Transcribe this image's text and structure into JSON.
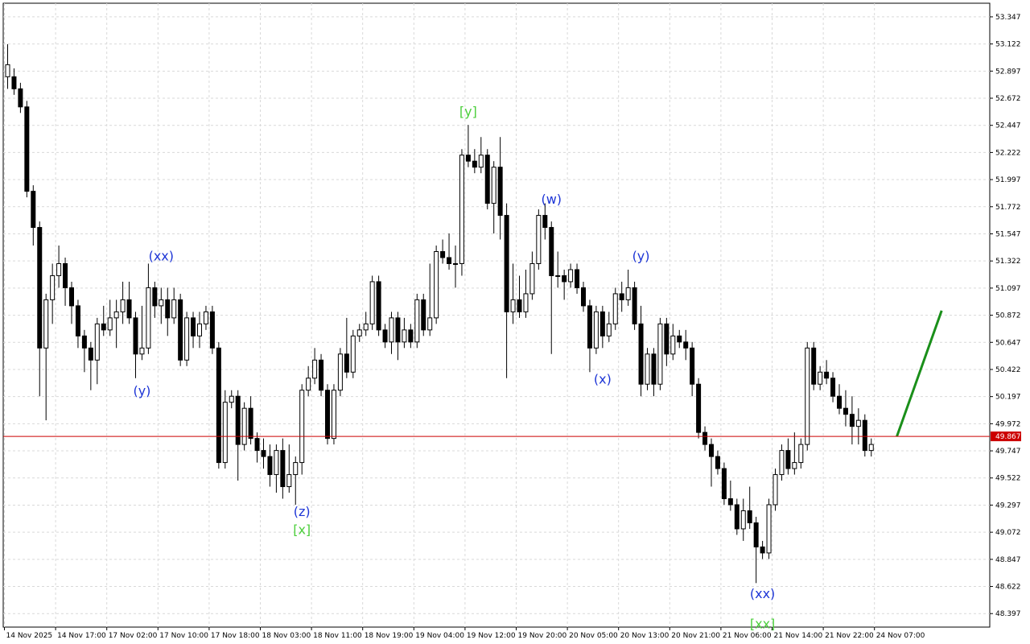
{
  "chart_data": {
    "type": "candlestick",
    "y_range": [
      48.285,
      53.46
    ],
    "y_ticks": [
      "53.347",
      "53.122",
      "52.897",
      "52.672",
      "52.447",
      "52.222",
      "51.997",
      "51.772",
      "51.547",
      "51.322",
      "51.097",
      "50.872",
      "50.647",
      "50.422",
      "50.197",
      "49.972",
      "49.747",
      "49.522",
      "49.297",
      "49.072",
      "48.847",
      "48.622",
      "48.397"
    ],
    "x_ticks": [
      {
        "label": "14 Nov 2025",
        "index": 0
      },
      {
        "label": "14 Nov 17:00",
        "index": 8
      },
      {
        "label": "17 Nov 02:00",
        "index": 16
      },
      {
        "label": "17 Nov 10:00",
        "index": 24
      },
      {
        "label": "17 Nov 18:00",
        "index": 32
      },
      {
        "label": "18 Nov 03:00",
        "index": 40
      },
      {
        "label": "18 Nov 11:00",
        "index": 48
      },
      {
        "label": "18 Nov 19:00",
        "index": 56
      },
      {
        "label": "19 Nov 04:00",
        "index": 64
      },
      {
        "label": "19 Nov 12:00",
        "index": 72
      },
      {
        "label": "19 Nov 20:00",
        "index": 80
      },
      {
        "label": "20 Nov 05:00",
        "index": 88
      },
      {
        "label": "20 Nov 13:00",
        "index": 96
      },
      {
        "label": "20 Nov 21:00",
        "index": 104
      },
      {
        "label": "21 Nov 06:00",
        "index": 112
      },
      {
        "label": "21 Nov 14:00",
        "index": 120
      },
      {
        "label": "21 Nov 22:00",
        "index": 128
      },
      {
        "label": "24 Nov 07:00",
        "index": 136
      }
    ],
    "current_price": {
      "value": 49.867,
      "label": "49.867",
      "color": "#cc0000"
    },
    "candles": [
      [
        52.85,
        52.95,
        52.75,
        53.12
      ],
      [
        52.85,
        52.75,
        52.7,
        52.92
      ],
      [
        52.75,
        52.6,
        52.55,
        52.8
      ],
      [
        52.6,
        51.9,
        51.85,
        52.65
      ],
      [
        51.9,
        51.6,
        51.45,
        51.95
      ],
      [
        51.6,
        50.6,
        50.2,
        51.65
      ],
      [
        50.6,
        51.0,
        50.0,
        51.05
      ],
      [
        51.0,
        51.2,
        50.8,
        51.3
      ],
      [
        51.2,
        51.3,
        51.1,
        51.45
      ],
      [
        51.3,
        51.1,
        50.95,
        51.35
      ],
      [
        51.1,
        50.95,
        50.8,
        51.15
      ],
      [
        50.95,
        50.7,
        50.6,
        51.0
      ],
      [
        50.7,
        50.6,
        50.4,
        50.75
      ],
      [
        50.6,
        50.5,
        50.25,
        50.65
      ],
      [
        50.5,
        50.8,
        50.3,
        50.85
      ],
      [
        50.8,
        50.75,
        50.7,
        50.95
      ],
      [
        50.75,
        50.85,
        50.7,
        51.0
      ],
      [
        50.85,
        50.9,
        50.6,
        51.0
      ],
      [
        50.9,
        51.0,
        50.8,
        51.15
      ],
      [
        51.0,
        50.85,
        50.8,
        51.15
      ],
      [
        50.85,
        50.55,
        50.35,
        50.9
      ],
      [
        50.55,
        50.6,
        50.5,
        50.95
      ],
      [
        50.6,
        51.1,
        50.55,
        51.3
      ],
      [
        51.1,
        50.95,
        50.85,
        51.15
      ],
      [
        50.95,
        51.0,
        50.8,
        51.1
      ],
      [
        51.0,
        50.85,
        50.7,
        51.1
      ],
      [
        50.85,
        51.0,
        50.8,
        51.1
      ],
      [
        51.0,
        50.5,
        50.45,
        51.05
      ],
      [
        50.5,
        50.85,
        50.45,
        50.9
      ],
      [
        50.85,
        50.7,
        50.6,
        50.9
      ],
      [
        50.7,
        50.8,
        50.6,
        50.9
      ],
      [
        50.8,
        50.9,
        50.75,
        50.95
      ],
      [
        50.9,
        50.6,
        50.55,
        50.95
      ],
      [
        50.6,
        49.65,
        49.6,
        50.65
      ],
      [
        49.65,
        50.15,
        49.6,
        50.25
      ],
      [
        50.15,
        50.2,
        50.1,
        50.25
      ],
      [
        50.2,
        49.8,
        49.5,
        50.25
      ],
      [
        49.8,
        50.1,
        49.75,
        50.15
      ],
      [
        50.1,
        49.85,
        49.8,
        50.2
      ],
      [
        49.85,
        49.75,
        49.65,
        49.9
      ],
      [
        49.75,
        49.7,
        49.6,
        49.85
      ],
      [
        49.7,
        49.55,
        49.45,
        49.8
      ],
      [
        49.55,
        49.75,
        49.4,
        49.8
      ],
      [
        49.75,
        49.45,
        49.35,
        49.85
      ],
      [
        49.45,
        49.55,
        49.4,
        49.8
      ],
      [
        49.55,
        49.65,
        49.3,
        49.7
      ],
      [
        49.65,
        50.25,
        49.55,
        50.3
      ],
      [
        50.25,
        50.35,
        50.2,
        50.45
      ],
      [
        50.35,
        50.5,
        50.3,
        50.6
      ],
      [
        50.5,
        50.25,
        50.2,
        50.55
      ],
      [
        50.25,
        49.85,
        49.8,
        50.3
      ],
      [
        49.85,
        50.25,
        49.8,
        50.3
      ],
      [
        50.25,
        50.55,
        50.2,
        50.6
      ],
      [
        50.55,
        50.4,
        50.35,
        50.85
      ],
      [
        50.4,
        50.7,
        50.35,
        50.75
      ],
      [
        50.7,
        50.75,
        50.65,
        50.8
      ],
      [
        50.75,
        50.8,
        50.7,
        50.9
      ],
      [
        50.8,
        51.15,
        50.75,
        51.2
      ],
      [
        51.15,
        50.75,
        50.7,
        51.2
      ],
      [
        50.75,
        50.65,
        50.6,
        50.8
      ],
      [
        50.65,
        50.85,
        50.55,
        50.9
      ],
      [
        50.85,
        50.65,
        50.5,
        50.9
      ],
      [
        50.65,
        50.75,
        50.6,
        50.85
      ],
      [
        50.75,
        50.65,
        50.6,
        50.8
      ],
      [
        50.65,
        51.0,
        50.6,
        51.05
      ],
      [
        51.0,
        50.75,
        50.7,
        51.05
      ],
      [
        50.75,
        50.85,
        50.7,
        51.3
      ],
      [
        50.85,
        51.4,
        50.8,
        51.45
      ],
      [
        51.4,
        51.35,
        51.3,
        51.5
      ],
      [
        51.35,
        51.3,
        51.25,
        51.55
      ],
      [
        51.3,
        51.3,
        51.1,
        51.45
      ],
      [
        51.3,
        52.2,
        51.2,
        52.25
      ],
      [
        52.2,
        52.15,
        52.1,
        52.45
      ],
      [
        52.15,
        52.1,
        52.05,
        52.25
      ],
      [
        52.1,
        52.2,
        52.05,
        52.35
      ],
      [
        52.2,
        51.8,
        51.75,
        52.25
      ],
      [
        51.8,
        52.1,
        51.55,
        52.15
      ],
      [
        52.1,
        51.7,
        51.5,
        52.35
      ],
      [
        51.7,
        50.9,
        50.35,
        51.8
      ],
      [
        50.9,
        51.0,
        50.8,
        51.3
      ],
      [
        51.0,
        50.9,
        50.85,
        51.2
      ],
      [
        50.9,
        51.05,
        50.85,
        51.25
      ],
      [
        51.05,
        51.3,
        51.0,
        51.4
      ],
      [
        51.3,
        51.7,
        51.25,
        51.75
      ],
      [
        51.7,
        51.6,
        51.5,
        51.8
      ],
      [
        51.6,
        51.2,
        50.55,
        51.65
      ],
      [
        51.2,
        51.2,
        51.1,
        51.4
      ],
      [
        51.2,
        51.15,
        51.0,
        51.25
      ],
      [
        51.15,
        51.25,
        51.1,
        51.3
      ],
      [
        51.25,
        51.1,
        51.05,
        51.3
      ],
      [
        51.1,
        50.95,
        50.9,
        51.15
      ],
      [
        50.95,
        50.6,
        50.4,
        51.0
      ],
      [
        50.6,
        50.9,
        50.55,
        50.95
      ],
      [
        50.9,
        50.7,
        50.6,
        50.95
      ],
      [
        50.7,
        50.8,
        50.65,
        50.9
      ],
      [
        50.8,
        51.05,
        50.75,
        51.1
      ],
      [
        51.05,
        51.0,
        50.9,
        51.15
      ],
      [
        51.0,
        51.1,
        50.95,
        51.25
      ],
      [
        51.1,
        50.8,
        50.75,
        51.15
      ],
      [
        50.8,
        50.3,
        50.2,
        50.95
      ],
      [
        50.3,
        50.55,
        50.25,
        50.6
      ],
      [
        50.55,
        50.3,
        50.2,
        50.6
      ],
      [
        50.3,
        50.8,
        50.25,
        50.85
      ],
      [
        50.8,
        50.55,
        50.45,
        50.85
      ],
      [
        50.55,
        50.7,
        50.5,
        50.8
      ],
      [
        50.7,
        50.65,
        50.6,
        50.75
      ],
      [
        50.65,
        50.6,
        50.5,
        50.75
      ],
      [
        50.6,
        50.3,
        50.2,
        50.65
      ],
      [
        50.3,
        49.9,
        49.85,
        50.35
      ],
      [
        49.9,
        49.8,
        49.75,
        49.95
      ],
      [
        49.8,
        49.7,
        49.45,
        49.85
      ],
      [
        49.7,
        49.6,
        49.55,
        49.75
      ],
      [
        49.6,
        49.35,
        49.3,
        49.65
      ],
      [
        49.35,
        49.3,
        49.25,
        49.5
      ],
      [
        49.3,
        49.1,
        49.05,
        49.35
      ],
      [
        49.1,
        49.25,
        49.0,
        49.35
      ],
      [
        49.25,
        49.15,
        49.1,
        49.45
      ],
      [
        49.15,
        48.95,
        48.65,
        49.2
      ],
      [
        48.95,
        48.9,
        48.85,
        49.0
      ],
      [
        48.9,
        49.3,
        48.85,
        49.35
      ],
      [
        49.3,
        49.55,
        49.25,
        49.6
      ],
      [
        49.55,
        49.75,
        49.5,
        49.8
      ],
      [
        49.75,
        49.6,
        49.55,
        49.85
      ],
      [
        49.6,
        49.65,
        49.55,
        49.9
      ],
      [
        49.65,
        49.8,
        49.6,
        49.85
      ],
      [
        49.8,
        50.6,
        49.75,
        50.65
      ],
      [
        50.6,
        50.3,
        50.25,
        50.65
      ],
      [
        50.3,
        50.4,
        50.25,
        50.45
      ],
      [
        50.4,
        50.35,
        50.3,
        50.5
      ],
      [
        50.35,
        50.2,
        50.15,
        50.4
      ],
      [
        50.2,
        50.1,
        50.05,
        50.3
      ],
      [
        50.1,
        50.05,
        49.95,
        50.25
      ],
      [
        50.05,
        49.95,
        49.8,
        50.2
      ],
      [
        49.95,
        50.0,
        49.8,
        50.1
      ],
      [
        50.0,
        49.75,
        49.7,
        50.05
      ],
      [
        49.75,
        49.8,
        49.7,
        49.85
      ]
    ],
    "projection": {
      "from_index": 139,
      "from_price": 49.867,
      "to_index": 146,
      "to_price": 50.91,
      "color": "#1a8f1a"
    },
    "wave_labels": [
      {
        "text": "(xx)",
        "index": 24,
        "price": 51.3,
        "pos": "above",
        "color": "blue"
      },
      {
        "text": "(y)",
        "index": 21,
        "price": 50.3,
        "pos": "below",
        "color": "blue"
      },
      {
        "text": "(z)",
        "index": 46,
        "price": 49.3,
        "pos": "below",
        "color": "blue"
      },
      {
        "text": "[x]",
        "index": 46,
        "price": 49.15,
        "pos": "below",
        "color": "green"
      },
      {
        "text": "[y]",
        "index": 72,
        "price": 52.5,
        "pos": "above",
        "color": "green"
      },
      {
        "text": "(w)",
        "index": 85,
        "price": 51.77,
        "pos": "above",
        "color": "blue"
      },
      {
        "text": "(x)",
        "index": 93,
        "price": 50.4,
        "pos": "below",
        "color": "blue"
      },
      {
        "text": "(y)",
        "index": 99,
        "price": 51.3,
        "pos": "above",
        "color": "blue"
      },
      {
        "text": "(xx)",
        "index": 118,
        "price": 48.62,
        "pos": "below",
        "color": "blue"
      },
      {
        "text": "[xx]",
        "index": 118,
        "price": 48.37,
        "pos": "below",
        "color": "green"
      }
    ]
  }
}
